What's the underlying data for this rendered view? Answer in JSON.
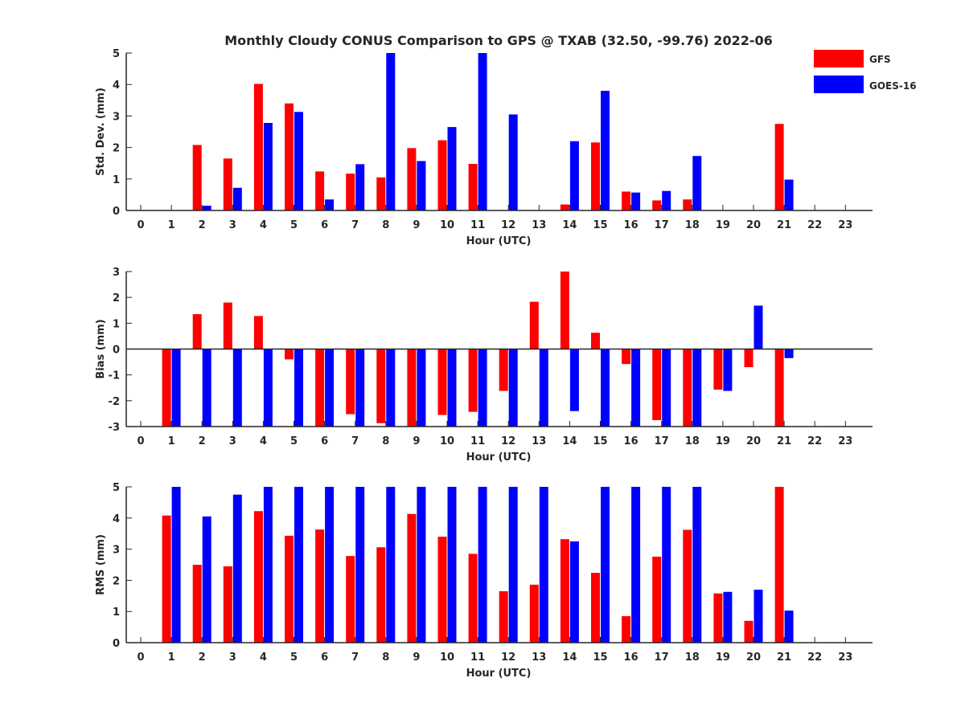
{
  "title": "Monthly Cloudy CONUS Comparison to GPS @ TXAB (32.50, -99.76) 2022-06",
  "legend": {
    "placement": "top-right",
    "entries": [
      {
        "name": "GFS",
        "color": "#ff0000"
      },
      {
        "name": "GOES-16",
        "color": "#0000ff"
      }
    ]
  },
  "chart_data": [
    {
      "type": "bar",
      "xlabel": "Hour (UTC)",
      "ylabel": "Std. Dev. (mm)",
      "ylim": [
        0,
        5
      ],
      "yticks": [
        0,
        1,
        2,
        3,
        4,
        5
      ],
      "x": [
        0,
        1,
        2,
        3,
        4,
        5,
        6,
        7,
        8,
        9,
        10,
        11,
        12,
        13,
        14,
        15,
        16,
        17,
        18,
        19,
        20,
        21,
        22,
        23
      ],
      "series": [
        {
          "name": "GFS",
          "color": "#ff0000",
          "values": [
            null,
            null,
            2.08,
            1.65,
            4.02,
            3.4,
            1.24,
            1.17,
            1.05,
            1.98,
            2.23,
            1.48,
            null,
            null,
            0.19,
            2.16,
            0.6,
            0.32,
            0.35,
            null,
            null,
            2.75,
            null,
            null
          ]
        },
        {
          "name": "GOES-16",
          "color": "#0000ff",
          "values": [
            null,
            null,
            0.15,
            0.72,
            2.78,
            3.13,
            0.35,
            1.47,
            5.0,
            1.57,
            2.65,
            5.0,
            3.05,
            null,
            2.2,
            3.8,
            0.57,
            0.62,
            1.73,
            null,
            null,
            0.98,
            null,
            null
          ]
        }
      ]
    },
    {
      "type": "bar",
      "xlabel": "Hour (UTC)",
      "ylabel": "Bias (mm)",
      "ylim": [
        -3,
        3
      ],
      "yticks": [
        -3,
        -2,
        -1,
        0,
        1,
        2,
        3
      ],
      "x": [
        0,
        1,
        2,
        3,
        4,
        5,
        6,
        7,
        8,
        9,
        10,
        11,
        12,
        13,
        14,
        15,
        16,
        17,
        18,
        19,
        20,
        21,
        22,
        23
      ],
      "series": [
        {
          "name": "GFS",
          "color": "#ff0000",
          "values": [
            null,
            -3.0,
            1.35,
            1.8,
            1.28,
            -0.4,
            -3.0,
            -2.52,
            -2.87,
            -3.0,
            -2.55,
            -2.43,
            -1.62,
            1.83,
            3.0,
            0.63,
            -0.58,
            -2.75,
            -3.0,
            -1.57,
            -0.7,
            -3.0,
            null,
            null
          ]
        },
        {
          "name": "GOES-16",
          "color": "#0000ff",
          "values": [
            null,
            -3.0,
            -3.0,
            -3.0,
            -3.0,
            -3.0,
            -3.0,
            -3.0,
            -3.0,
            -3.0,
            -3.0,
            -3.0,
            -3.0,
            -3.0,
            -2.4,
            -3.0,
            -3.0,
            -3.0,
            -3.0,
            -1.62,
            1.68,
            -0.35,
            null,
            null
          ]
        }
      ]
    },
    {
      "type": "bar",
      "xlabel": "Hour (UTC)",
      "ylabel": "RMS (mm)",
      "ylim": [
        0,
        5
      ],
      "yticks": [
        0,
        1,
        2,
        3,
        4,
        5
      ],
      "x": [
        0,
        1,
        2,
        3,
        4,
        5,
        6,
        7,
        8,
        9,
        10,
        11,
        12,
        13,
        14,
        15,
        16,
        17,
        18,
        19,
        20,
        21,
        22,
        23
      ],
      "series": [
        {
          "name": "GFS",
          "color": "#ff0000",
          "values": [
            null,
            4.08,
            2.5,
            2.45,
            4.22,
            3.43,
            3.63,
            2.78,
            3.06,
            4.13,
            3.4,
            2.85,
            1.65,
            1.86,
            3.32,
            2.24,
            0.85,
            2.76,
            3.62,
            1.58,
            0.7,
            5.0,
            null,
            null
          ]
        },
        {
          "name": "GOES-16",
          "color": "#0000ff",
          "values": [
            null,
            5.0,
            4.05,
            4.75,
            5.0,
            5.0,
            5.0,
            5.0,
            5.0,
            5.0,
            5.0,
            5.0,
            5.0,
            5.0,
            3.25,
            5.0,
            5.0,
            5.0,
            5.0,
            1.63,
            1.7,
            1.03,
            null,
            null
          ]
        }
      ]
    }
  ]
}
